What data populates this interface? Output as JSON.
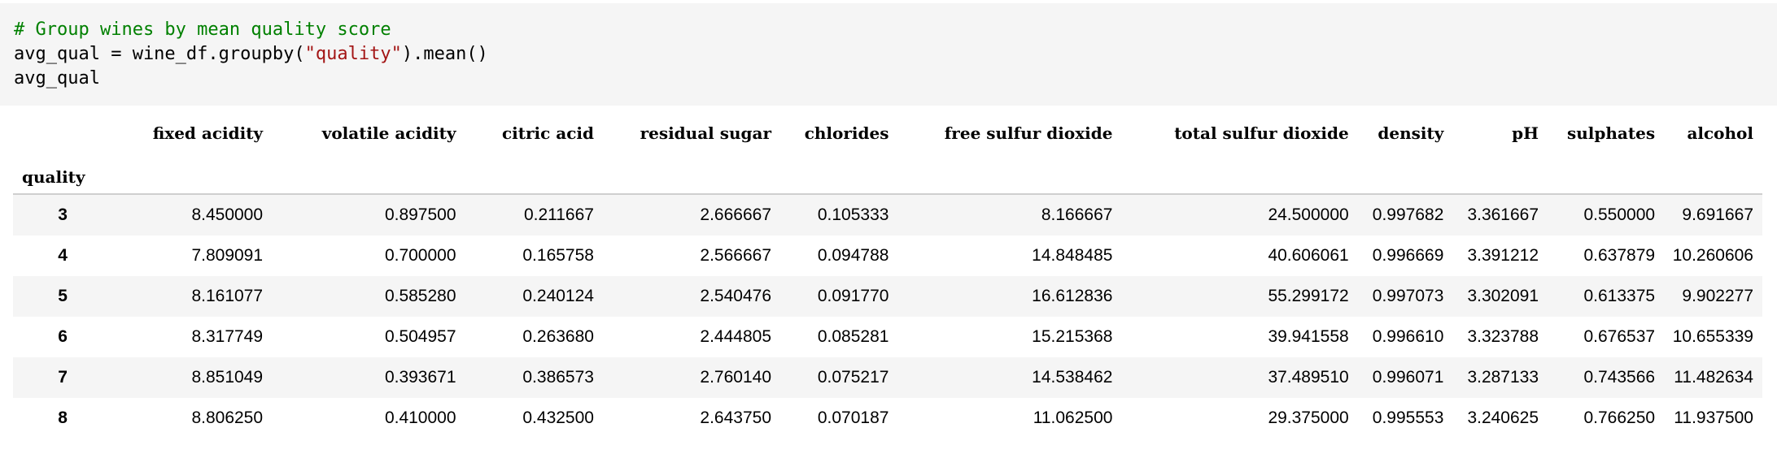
{
  "code": {
    "comment": "# Group wines by mean quality score",
    "line2_prefix": "avg_qual = wine_df.groupby(",
    "line2_string": "\"quality\"",
    "line2_suffix": ").mean()",
    "line3": "avg_qual"
  },
  "table": {
    "index_name": "quality",
    "columns": [
      "fixed acidity",
      "volatile acidity",
      "citric acid",
      "residual sugar",
      "chlorides",
      "free sulfur dioxide",
      "total sulfur dioxide",
      "density",
      "pH",
      "sulphates",
      "alcohol"
    ],
    "rows": [
      {
        "index": "3",
        "values": [
          "8.450000",
          "0.897500",
          "0.211667",
          "2.666667",
          "0.105333",
          "8.166667",
          "24.500000",
          "0.997682",
          "3.361667",
          "0.550000",
          "9.691667"
        ]
      },
      {
        "index": "4",
        "values": [
          "7.809091",
          "0.700000",
          "0.165758",
          "2.566667",
          "0.094788",
          "14.848485",
          "40.606061",
          "0.996669",
          "3.391212",
          "0.637879",
          "10.260606"
        ]
      },
      {
        "index": "5",
        "values": [
          "8.161077",
          "0.585280",
          "0.240124",
          "2.540476",
          "0.091770",
          "16.612836",
          "55.299172",
          "0.997073",
          "3.302091",
          "0.613375",
          "9.902277"
        ]
      },
      {
        "index": "6",
        "values": [
          "8.317749",
          "0.504957",
          "0.263680",
          "2.444805",
          "0.085281",
          "15.215368",
          "39.941558",
          "0.996610",
          "3.323788",
          "0.676537",
          "10.655339"
        ]
      },
      {
        "index": "7",
        "values": [
          "8.851049",
          "0.393671",
          "0.386573",
          "2.760140",
          "0.075217",
          "14.538462",
          "37.489510",
          "0.996071",
          "3.287133",
          "0.743566",
          "11.482634"
        ]
      },
      {
        "index": "8",
        "values": [
          "8.806250",
          "0.410000",
          "0.432500",
          "2.643750",
          "0.070187",
          "11.062500",
          "29.375000",
          "0.995553",
          "3.240625",
          "0.766250",
          "11.937500"
        ]
      }
    ]
  }
}
